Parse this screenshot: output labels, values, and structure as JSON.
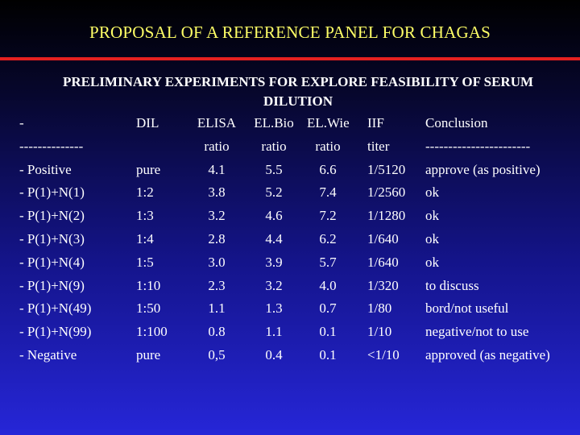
{
  "slide": {
    "title": "PROPOSAL OF A REFERENCE PANEL FOR CHAGAS",
    "subtitle": "PRELIMINARY EXPERIMENTS FOR EXPLORE FEASIBILITY OF SERUM DILUTION"
  },
  "colors": {
    "title": "#ffff66",
    "rule": "#e52020",
    "text": "#ffffff"
  },
  "table": {
    "header1": [
      "-",
      "DIL",
      "ELISA",
      "EL.Bio",
      "EL.Wie",
      "IIF",
      "Conclusion"
    ],
    "header2": [
      "--------------",
      "",
      "ratio",
      "ratio",
      "ratio",
      "titer",
      "-----------------------"
    ],
    "rows": [
      [
        "- Positive",
        "pure",
        "4.1",
        "5.5",
        "6.6",
        "1/5120",
        "approve (as positive)"
      ],
      [
        "- P(1)+N(1)",
        "1:2",
        "3.8",
        "5.2",
        "7.4",
        "1/2560",
        " ok"
      ],
      [
        "- P(1)+N(2)",
        "1:3",
        "3.2",
        "4.6",
        "7.2",
        "1/1280",
        " ok"
      ],
      [
        "- P(1)+N(3)",
        "1:4",
        "2.8",
        "4.4",
        "6.2",
        "1/640",
        " ok"
      ],
      [
        "- P(1)+N(4)",
        "1:5",
        "3.0",
        "3.9",
        "5.7",
        "1/640",
        " ok"
      ],
      [
        "- P(1)+N(9)",
        "1:10",
        "2.3",
        "3.2",
        "4.0",
        "1/320",
        " to discuss"
      ],
      [
        "- P(1)+N(49)",
        "1:50",
        "1.1",
        "1.3",
        "0.7",
        "1/80",
        "bord/not useful"
      ],
      [
        "- P(1)+N(99)",
        "1:100",
        "0.8",
        "1.1",
        "0.1",
        "1/10",
        "negative/not to use"
      ],
      [
        "- Negative",
        "pure",
        "0,5",
        "0.4",
        "0.1",
        "<1/10",
        "approved (as negative)"
      ]
    ]
  }
}
